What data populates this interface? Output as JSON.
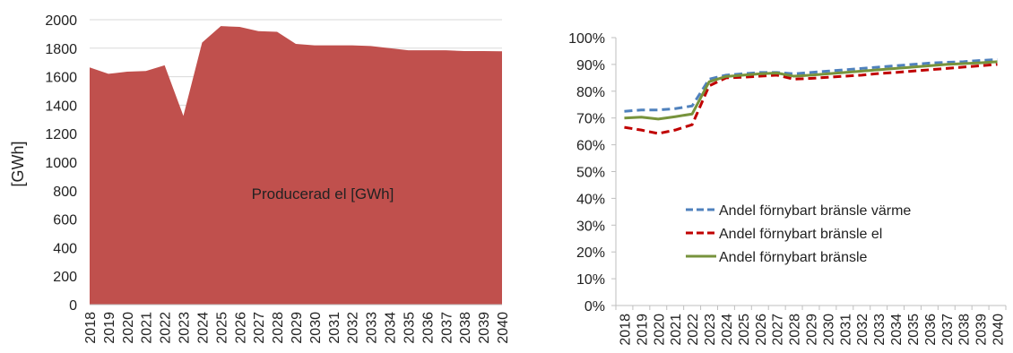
{
  "chart_data": [
    {
      "type": "area",
      "ylabel": "[GWh]",
      "xlabel": "",
      "ylim": [
        0,
        2000
      ],
      "ytick_step": 200,
      "grid": true,
      "x": [
        "2018",
        "2019",
        "2020",
        "2021",
        "2022",
        "2023",
        "2024",
        "2025",
        "2026",
        "2027",
        "2028",
        "2029",
        "2030",
        "2031",
        "2032",
        "2033",
        "2034",
        "2035",
        "2036",
        "2037",
        "2038",
        "2039",
        "2040"
      ],
      "series": [
        {
          "name": "Producerad el  [GWh]",
          "color": "#c0504d",
          "values": [
            1665,
            1620,
            1635,
            1640,
            1680,
            1325,
            1840,
            1955,
            1950,
            1920,
            1915,
            1830,
            1820,
            1820,
            1820,
            1815,
            1800,
            1785,
            1785,
            1785,
            1780,
            1780,
            1778
          ]
        }
      ]
    },
    {
      "type": "line",
      "ylabel": "",
      "xlabel": "",
      "ylim": [
        0,
        100
      ],
      "ytick_step": 10,
      "grid": false,
      "legend_position": "center-left",
      "x": [
        "2018",
        "2019",
        "2020",
        "2021",
        "2022",
        "2023",
        "2024",
        "2025",
        "2026",
        "2027",
        "2028",
        "2029",
        "2030",
        "2031",
        "2032",
        "2033",
        "2034",
        "2035",
        "2036",
        "2037",
        "2038",
        "2039",
        "2040"
      ],
      "series": [
        {
          "name": "Andel förnybart bränsle värme",
          "color": "#4f81bd",
          "dash": "dashed",
          "values": [
            72.5,
            73,
            73,
            73.5,
            74.5,
            84.5,
            86,
            86.5,
            87,
            87,
            86.5,
            87,
            87.5,
            88,
            88.5,
            89,
            89.5,
            90,
            90.5,
            90.8,
            91,
            91.5,
            91.8
          ]
        },
        {
          "name": "Andel förnybart bränsle el",
          "color": "#c00000",
          "dash": "dashed",
          "values": [
            66.5,
            65.5,
            64.2,
            65.5,
            67.5,
            82,
            85,
            85.2,
            85.6,
            86,
            84.5,
            84.8,
            85.2,
            85.6,
            86,
            86.6,
            87,
            87.5,
            88,
            88.5,
            89,
            89.5,
            90
          ]
        },
        {
          "name": "Andel förnybart bränsle",
          "color": "#77933c",
          "dash": "solid",
          "values": [
            70,
            70.3,
            69.6,
            70.5,
            71.5,
            83.5,
            85.5,
            86,
            86.5,
            86.8,
            85.6,
            86,
            86.5,
            87,
            87.5,
            88,
            88.5,
            89,
            89.5,
            90,
            90.3,
            90.6,
            91
          ]
        }
      ],
      "ytick_suffix": "%"
    }
  ]
}
